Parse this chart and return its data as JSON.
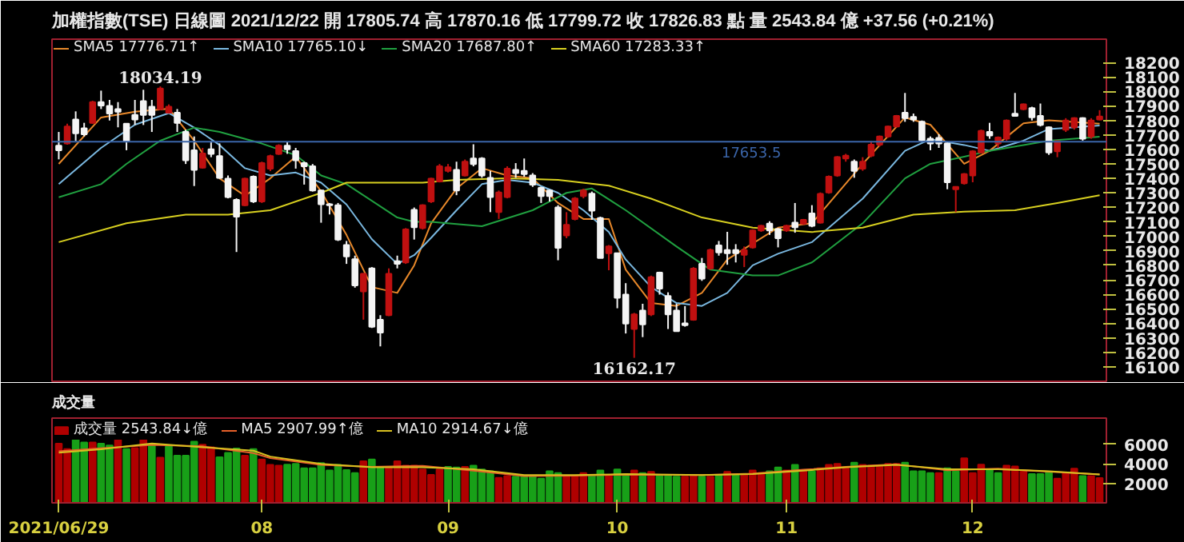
{
  "chart_data": [
    {
      "type": "candlestick",
      "title": "加權指數(TSE)  日線圖  2021/12/22  開 17805.74  高 17870.16  低 17799.72  收 17826.83  點  量 2543.84 億  +37.56 (+0.21%)",
      "categories": [
        "2021/06/29",
        null,
        null,
        null,
        null,
        null,
        null,
        null,
        null,
        null,
        null,
        null,
        null,
        null,
        null,
        null,
        null,
        null,
        null,
        null,
        null,
        null,
        null,
        null,
        "08",
        null,
        null,
        null,
        null,
        null,
        null,
        null,
        null,
        null,
        null,
        null,
        null,
        null,
        null,
        null,
        null,
        null,
        null,
        null,
        null,
        null,
        "09",
        null,
        null,
        null,
        null,
        null,
        null,
        null,
        null,
        null,
        null,
        null,
        null,
        null,
        null,
        null,
        null,
        null,
        null,
        null,
        "10",
        null,
        null,
        null,
        null,
        null,
        null,
        null,
        null,
        null,
        null,
        null,
        null,
        null,
        null,
        null,
        null,
        null,
        null,
        null,
        "11",
        null,
        null,
        null,
        null,
        null,
        null,
        null,
        null,
        null,
        null,
        null,
        null,
        null,
        null,
        null,
        null,
        null,
        null,
        null,
        null,
        null,
        "12",
        null,
        null,
        null,
        null,
        null,
        null,
        null,
        null,
        null,
        null,
        null,
        null,
        null,
        null,
        null
      ],
      "ohlc": [
        [
          17625,
          17720,
          17531,
          17594
        ],
        [
          17641,
          17777,
          17632,
          17758
        ],
        [
          17806,
          17862,
          17657,
          17711
        ],
        [
          17745,
          17783,
          17689,
          17704
        ],
        [
          17783,
          17935,
          17777,
          17926
        ],
        [
          17926,
          18005,
          17878,
          17903
        ],
        [
          17900,
          17941,
          17799,
          17847
        ],
        [
          17878,
          17926,
          17752,
          17859
        ],
        [
          17777,
          17777,
          17594,
          17657
        ],
        [
          17837,
          17941,
          17768,
          17806
        ],
        [
          17932,
          18011,
          17768,
          17837
        ],
        [
          17894,
          17941,
          17720,
          17837
        ],
        [
          17878,
          18034.19,
          17870,
          18020
        ],
        [
          17853,
          17910,
          17847,
          17894
        ],
        [
          17853,
          17878,
          17720,
          17783
        ],
        [
          17720,
          17736,
          17499,
          17524
        ],
        [
          17594,
          17689,
          17347,
          17458
        ],
        [
          17474,
          17610,
          17467,
          17572
        ],
        [
          17600,
          17657,
          17546,
          17569
        ],
        [
          17553,
          17641,
          17398,
          17404
        ],
        [
          17398,
          17420,
          17262,
          17271
        ],
        [
          17252,
          17262,
          16892,
          17136
        ],
        [
          17215,
          17404,
          17208,
          17398
        ],
        [
          17411,
          17420,
          17230,
          17240
        ],
        [
          17240,
          17515,
          17230,
          17505
        ],
        [
          17467,
          17563,
          17450,
          17553
        ],
        [
          17569,
          17635,
          17562,
          17625
        ],
        [
          17625,
          17651,
          17569,
          17600
        ],
        [
          17588,
          17610,
          17467,
          17524
        ],
        [
          17505,
          17515,
          17357,
          17483
        ],
        [
          17483,
          17499,
          17309,
          17316
        ],
        [
          17316,
          17322,
          17094,
          17221
        ],
        [
          17221,
          17230,
          17151,
          17215
        ],
        [
          17215,
          17230,
          16968,
          16978
        ],
        [
          16940,
          16968,
          16810,
          16861
        ],
        [
          16842,
          16867,
          16646,
          16662
        ],
        [
          16621,
          16747,
          16425,
          16741
        ],
        [
          16779,
          16788,
          16368,
          16377
        ],
        [
          16425,
          16456,
          16241,
          16336
        ],
        [
          16456,
          16779,
          16450,
          16741
        ],
        [
          16829,
          16867,
          16779,
          16810
        ],
        [
          16820,
          17057,
          16810,
          17047
        ],
        [
          17183,
          17199,
          16978,
          17063
        ],
        [
          17057,
          17221,
          17047,
          17215
        ],
        [
          17240,
          17404,
          17230,
          17398
        ],
        [
          17379,
          17499,
          17372,
          17483
        ],
        [
          17452,
          17499,
          17440,
          17477
        ],
        [
          17458,
          17515,
          17284,
          17316
        ],
        [
          17420,
          17530,
          17413,
          17515
        ],
        [
          17537,
          17635,
          17483,
          17499
        ],
        [
          17537,
          17546,
          17404,
          17420
        ],
        [
          17404,
          17452,
          17167,
          17271
        ],
        [
          17167,
          17316,
          17120,
          17303
        ],
        [
          17271,
          17483,
          17262,
          17467
        ],
        [
          17458,
          17505,
          17404,
          17436
        ],
        [
          17452,
          17537,
          17411,
          17430
        ],
        [
          17420,
          17436,
          17341,
          17357
        ],
        [
          17335,
          17341,
          17230,
          17278
        ],
        [
          17316,
          17322,
          17240,
          17278
        ],
        [
          17199,
          17215,
          16835,
          16921
        ],
        [
          17006,
          17167,
          16987,
          17079
        ],
        [
          17120,
          17271,
          17110,
          17262
        ],
        [
          17278,
          17328,
          17262,
          17316
        ],
        [
          17294,
          17309,
          17114,
          17177
        ],
        [
          17126,
          17136,
          16851,
          16851
        ],
        [
          16883,
          16940,
          16766,
          16930
        ],
        [
          16883,
          16883,
          16504,
          16576
        ],
        [
          16598,
          16677,
          16330,
          16399
        ],
        [
          16361,
          16472,
          16162.17,
          16462
        ],
        [
          16488,
          16535,
          16305,
          16393
        ],
        [
          16462,
          16729,
          16450,
          16718
        ],
        [
          16750,
          16756,
          16598,
          16639
        ],
        [
          16589,
          16614,
          16361,
          16462
        ],
        [
          16488,
          16535,
          16346,
          16346
        ],
        [
          16400,
          16519,
          16377,
          16387
        ],
        [
          16425,
          16788,
          16418,
          16778
        ],
        [
          16810,
          16851,
          16693,
          16709
        ],
        [
          16779,
          16915,
          16770,
          16905
        ],
        [
          16937,
          16968,
          16867,
          16889
        ],
        [
          16905,
          17031,
          16804,
          16883
        ],
        [
          16905,
          16946,
          16820,
          16883
        ],
        [
          16873,
          16930,
          16788,
          16905
        ],
        [
          16924,
          17047,
          16915,
          17041
        ],
        [
          17041,
          17079,
          17031,
          17072
        ],
        [
          17088,
          17104,
          17010,
          17041
        ],
        [
          17050,
          17057,
          16924,
          16987
        ],
        [
          17041,
          17079,
          17031,
          17072
        ],
        [
          17094,
          17230,
          17025,
          17063
        ],
        [
          17088,
          17120,
          17079,
          17114
        ],
        [
          17158,
          17215,
          17063,
          17072
        ],
        [
          17094,
          17303,
          17088,
          17293
        ],
        [
          17303,
          17420,
          17294,
          17411
        ],
        [
          17420,
          17553,
          17411,
          17546
        ],
        [
          17537,
          17569,
          17515,
          17556
        ],
        [
          17515,
          17530,
          17404,
          17452
        ],
        [
          17467,
          17546,
          17452,
          17515
        ],
        [
          17556,
          17657,
          17546,
          17632
        ],
        [
          17632,
          17695,
          17620,
          17689
        ],
        [
          17689,
          17764,
          17680,
          17758
        ],
        [
          17758,
          17837,
          17752,
          17831
        ],
        [
          17853,
          17989,
          17790,
          17815
        ],
        [
          17824,
          17847,
          17790,
          17806
        ],
        [
          17790,
          17799,
          17654,
          17663
        ],
        [
          17673,
          17689,
          17594,
          17641
        ],
        [
          17679,
          17704,
          17610,
          17641
        ],
        [
          17641,
          17651,
          17325,
          17373
        ],
        [
          17325,
          17341,
          17167,
          17341
        ],
        [
          17366,
          17436,
          17357,
          17429
        ],
        [
          17420,
          17594,
          17373,
          17587
        ],
        [
          17578,
          17736,
          17572,
          17727
        ],
        [
          17720,
          17783,
          17673,
          17695
        ],
        [
          17641,
          17689,
          17610,
          17682
        ],
        [
          17673,
          17806,
          17660,
          17799
        ],
        [
          17846,
          17989,
          17831,
          17831
        ],
        [
          17878,
          17916,
          17870,
          17910
        ],
        [
          17885,
          17894,
          17799,
          17821
        ],
        [
          17831,
          17916,
          17758,
          17768
        ],
        [
          17752,
          17758,
          17562,
          17578
        ],
        [
          17587,
          17657,
          17546,
          17657
        ],
        [
          17736,
          17815,
          17720,
          17799
        ],
        [
          17752,
          17821,
          17736,
          17815
        ],
        [
          17815,
          17821,
          17660,
          17673
        ],
        [
          17689,
          17815,
          17673,
          17799
        ],
        [
          17805.74,
          17870.16,
          17799.72,
          17826.83
        ]
      ],
      "series": [
        {
          "name": "SMA5 17776.71↑",
          "type": "line",
          "color": "#e8882a",
          "values": [
            17500,
            null,
            null,
            null,
            null,
            17820,
            null,
            null,
            null,
            17860,
            null,
            null,
            null,
            17880,
            null,
            null,
            17660,
            null,
            null,
            17400,
            null,
            null,
            17280,
            null,
            null,
            17400,
            null,
            null,
            17550,
            null,
            null,
            17310,
            null,
            null,
            17010,
            null,
            null,
            16650,
            null,
            null,
            16610,
            null,
            16800,
            null,
            17090,
            null,
            null,
            17330,
            null,
            null,
            17470,
            null,
            null,
            17420,
            null,
            null,
            17400,
            null,
            null,
            17230,
            null,
            null,
            17120,
            null,
            null,
            17120,
            null,
            16770,
            null,
            null,
            16540,
            null,
            null,
            16520,
            null,
            null,
            16610,
            null,
            null,
            16840,
            null,
            null,
            16950,
            null,
            null,
            17060,
            null,
            null,
            null,
            17090,
            null,
            null,
            null,
            null,
            null,
            17500,
            null,
            null,
            null,
            null,
            17820,
            null,
            null,
            17770,
            null,
            null,
            null,
            17500,
            null,
            null,
            17590,
            null,
            null,
            null,
            17780,
            null,
            null,
            17800,
            null,
            null,
            null,
            null,
            null,
            17776.71
          ]
        },
        {
          "name": "SMA10 17765.10↓",
          "type": "line",
          "color": "#7ab8e0",
          "values": [
            17360,
            null,
            null,
            null,
            null,
            17610,
            null,
            null,
            null,
            17770,
            null,
            null,
            null,
            17850,
            null,
            null,
            17750,
            null,
            null,
            17630,
            null,
            null,
            17470,
            null,
            null,
            17420,
            null,
            null,
            17440,
            null,
            null,
            17370,
            null,
            null,
            17220,
            null,
            null,
            16980,
            null,
            null,
            16810,
            null,
            16870,
            null,
            16990,
            null,
            null,
            17180,
            null,
            null,
            17360,
            null,
            null,
            17390,
            null,
            null,
            17370,
            null,
            null,
            17300,
            null,
            null,
            17180,
            null,
            null,
            17030,
            null,
            16840,
            null,
            null,
            16650,
            null,
            null,
            16540,
            null,
            null,
            16520,
            null,
            null,
            16610,
            null,
            null,
            16800,
            null,
            null,
            16880,
            null,
            null,
            null,
            16960,
            null,
            null,
            null,
            null,
            null,
            17260,
            null,
            null,
            null,
            null,
            17590,
            null,
            null,
            17670,
            null,
            null,
            null,
            17630,
            null,
            null,
            17590,
            null,
            null,
            null,
            17660,
            null,
            null,
            17740,
            null,
            null,
            null,
            null,
            null,
            17765.1
          ]
        },
        {
          "name": "SMA20 17687.80↑",
          "type": "line",
          "color": "#20a040",
          "values": [
            17270,
            null,
            null,
            null,
            null,
            17360,
            null,
            null,
            17500,
            null,
            null,
            null,
            17660,
            null,
            null,
            null,
            17750,
            null,
            null,
            17720,
            null,
            null,
            null,
            null,
            17640,
            null,
            null,
            null,
            17560,
            null,
            null,
            17420,
            null,
            null,
            17360,
            null,
            null,
            null,
            null,
            null,
            17130,
            null,
            17100,
            null,
            17100,
            null,
            null,
            null,
            null,
            null,
            17070,
            null,
            null,
            null,
            null,
            null,
            17180,
            null,
            null,
            null,
            17300,
            null,
            null,
            17330,
            null,
            null,
            null,
            17180,
            null,
            null,
            null,
            null,
            null,
            16930,
            null,
            null,
            null,
            16770,
            null,
            null,
            null,
            null,
            16730,
            null,
            null,
            16730,
            null,
            null,
            null,
            16820,
            null,
            null,
            null,
            null,
            null,
            17090,
            null,
            null,
            null,
            null,
            17400,
            null,
            null,
            17500,
            null,
            null,
            null,
            17550,
            null,
            null,
            17590,
            null,
            null,
            null,
            17630,
            null,
            null,
            17660,
            null,
            null,
            null,
            null,
            null,
            17687.8
          ]
        },
        {
          "name": "SMA60 17283.33↑",
          "type": "line",
          "color": "#d8d020",
          "values": [
            16960,
            null,
            null,
            null,
            null,
            null,
            null,
            null,
            17090,
            null,
            null,
            null,
            null,
            null,
            null,
            17150,
            null,
            null,
            null,
            null,
            17150,
            null,
            null,
            null,
            null,
            17180,
            null,
            null,
            null,
            null,
            null,
            17300,
            null,
            null,
            17370,
            null,
            null,
            null,
            null,
            null,
            null,
            null,
            null,
            17370,
            null,
            null,
            null,
            17390,
            null,
            null,
            null,
            null,
            null,
            17400,
            null,
            null,
            null,
            null,
            null,
            17390,
            null,
            null,
            null,
            null,
            null,
            17350,
            null,
            null,
            null,
            null,
            17260,
            null,
            null,
            null,
            null,
            null,
            17130,
            null,
            null,
            null,
            null,
            null,
            17060,
            null,
            null,
            null,
            null,
            null,
            null,
            17030,
            null,
            null,
            null,
            null,
            null,
            17060,
            null,
            null,
            null,
            null,
            null,
            17150,
            null,
            null,
            null,
            null,
            null,
            17170,
            null,
            null,
            null,
            null,
            null,
            17180,
            null,
            null,
            null,
            null,
            17230,
            null,
            null,
            null,
            null,
            17283.33
          ]
        }
      ],
      "ylim": [
        16000,
        18360
      ],
      "yticks": [
        16100,
        16200,
        16300,
        16400,
        16500,
        16600,
        16700,
        16800,
        16900,
        17000,
        17100,
        17200,
        17300,
        17400,
        17500,
        17600,
        17700,
        17800,
        17900,
        18000,
        18100,
        18200
      ],
      "ref_lines": [
        {
          "axis": "y",
          "value": 17653.5,
          "label": "17653.5",
          "color": "#3a64a8"
        }
      ],
      "annotations": [
        {
          "text": "18034.19",
          "y": 18034.19
        },
        {
          "text": "16162.17",
          "y": 16162.17
        }
      ],
      "tick_labels": "y",
      "legend": "top left"
    },
    {
      "type": "bar",
      "title": "成交量",
      "categories": [
        "2021/06/29",
        null,
        null,
        null,
        null,
        null,
        null,
        null,
        null,
        null,
        null,
        null,
        null,
        null,
        null,
        null,
        null,
        null,
        null,
        null,
        null,
        null,
        null,
        null,
        "08",
        null,
        null,
        null,
        null,
        null,
        null,
        null,
        null,
        null,
        null,
        null,
        null,
        null,
        null,
        null,
        null,
        null,
        null,
        null,
        null,
        null,
        "09",
        null,
        null,
        null,
        null,
        null,
        null,
        null,
        null,
        null,
        null,
        null,
        null,
        null,
        null,
        null,
        null,
        null,
        null,
        null,
        "10",
        null,
        null,
        null,
        null,
        null,
        null,
        null,
        null,
        null,
        null,
        null,
        null,
        null,
        null,
        null,
        null,
        null,
        null,
        null,
        "11",
        null,
        null,
        null,
        null,
        null,
        null,
        null,
        null,
        null,
        null,
        null,
        null,
        null,
        null,
        null,
        null,
        null,
        null,
        null,
        null,
        null,
        "12",
        null,
        null,
        null,
        null,
        null,
        null,
        null,
        null,
        null,
        null,
        null,
        null,
        null,
        null,
        null
      ],
      "series": [
        {
          "name": "成交量 2543.84↓億",
          "type": "bar",
          "values": [
            6082,
            5515,
            6535,
            6195,
            6195,
            6082,
            5893,
            6460,
            5515,
            5628,
            6724,
            5893,
            4646,
            5817,
            4835,
            4835,
            6271,
            5969,
            5704,
            4684,
            5137,
            5590,
            4835,
            5515,
            4457,
            3890,
            3814,
            3927,
            4003,
            3549,
            3549,
            4079,
            3323,
            3890,
            3360,
            3058,
            4268,
            4457,
            3701,
            3701,
            4268,
            3814,
            3814,
            3436,
            2869,
            3436,
            3701,
            3625,
            3701,
            3814,
            3436,
            3247,
            2567,
            2756,
            2680,
            2680,
            2756,
            2491,
            3247,
            3058,
            2680,
            2756,
            3058,
            2793,
            3323,
            2869,
            3436,
            2945,
            3323,
            3058,
            3172,
            2793,
            2869,
            2680,
            2680,
            2869,
            2680,
            2680,
            2793,
            3172,
            2869,
            2869,
            3323,
            3058,
            3247,
            3625,
            3323,
            3890,
            3247,
            3247,
            3549,
            3890,
            4003,
            3549,
            4116,
            3890,
            3814,
            3814,
            4003,
            4003,
            4116,
            3247,
            3247,
            3058,
            3058,
            3549,
            3247,
            4570,
            3058,
            3927,
            3360,
            3058,
            3814,
            3739,
            3247,
            2945,
            2945,
            3172,
            2491,
            3058,
            3511,
            2756,
            2756,
            2543.84
          ],
          "colors": [
            "#b00000",
            "#b00000",
            "#18a018",
            "#18a018",
            "#b00000",
            "#18a018",
            "#18a018",
            "#b00000",
            "#18a018",
            "#b00000",
            "#b00000",
            "#18a018",
            "#b00000",
            "#18a018",
            "#18a018",
            "#18a018",
            "#18a018",
            "#b00000",
            "#b00000",
            "#18a018",
            "#18a018",
            "#18a018",
            "#b00000",
            "#18a018",
            "#b00000",
            "#b00000",
            "#b00000",
            "#18a018",
            "#18a018",
            "#18a018",
            "#18a018",
            "#18a018",
            "#18a018",
            "#18a018",
            "#18a018",
            "#18a018",
            "#b00000",
            "#18a018",
            "#18a018",
            "#b00000",
            "#b00000",
            "#b00000",
            "#b00000",
            "#b00000",
            "#b00000",
            "#b00000",
            "#18a018",
            "#18a018",
            "#b00000",
            "#18a018",
            "#18a018",
            "#18a018",
            "#b00000",
            "#b00000",
            "#18a018",
            "#18a018",
            "#18a018",
            "#18a018",
            "#18a018",
            "#18a018",
            "#b00000",
            "#b00000",
            "#b00000",
            "#18a018",
            "#18a018",
            "#b00000",
            "#18a018",
            "#18a018",
            "#b00000",
            "#18a018",
            "#b00000",
            "#18a018",
            "#18a018",
            "#18a018",
            "#b00000",
            "#b00000",
            "#18a018",
            "#b00000",
            "#18a018",
            "#b00000",
            "#18a018",
            "#b00000",
            "#b00000",
            "#b00000",
            "#18a018",
            "#18a018",
            "#b00000",
            "#18a018",
            "#b00000",
            "#18a018",
            "#b00000",
            "#b00000",
            "#b00000",
            "#b00000",
            "#18a018",
            "#b00000",
            "#b00000",
            "#b00000",
            "#b00000",
            "#b00000",
            "#18a018",
            "#18a018",
            "#18a018",
            "#18a018",
            "#b00000",
            "#18a018",
            "#18a018",
            "#b00000",
            "#b00000",
            "#b00000",
            "#18a018",
            "#18a018",
            "#b00000",
            "#b00000",
            "#b00000",
            "#18a018",
            "#18a018",
            "#18a018",
            "#b00000",
            "#b00000",
            "#b00000",
            "#18a018",
            "#b00000",
            "#b00000"
          ]
        },
        {
          "name": "MA5 2907.99↑億",
          "type": "line",
          "color": "#e8602a",
          "values": [
            5300,
            null,
            null,
            null,
            null,
            5600,
            null,
            null,
            null,
            null,
            null,
            5950,
            null,
            null,
            null,
            null,
            null,
            5800,
            null,
            null,
            null,
            null,
            null,
            5100,
            null,
            4600,
            null,
            null,
            null,
            null,
            null,
            3900,
            null,
            null,
            null,
            null,
            null,
            3700,
            null,
            null,
            null,
            null,
            null,
            3800,
            null,
            null,
            null,
            null,
            null,
            3300,
            null,
            null,
            null,
            null,
            null,
            2750,
            null,
            null,
            null,
            null,
            null,
            2800,
            null,
            null,
            null,
            null,
            null,
            2900,
            null,
            null,
            null,
            null,
            null,
            null,
            null,
            null,
            2850,
            null,
            null,
            null,
            null,
            null,
            3000,
            null,
            null,
            null,
            null,
            null,
            3400,
            null,
            null,
            null,
            null,
            3700,
            null,
            null,
            null,
            null,
            null,
            3950,
            null,
            null,
            null,
            null,
            null,
            3350,
            null,
            null,
            null,
            null,
            null,
            3500,
            null,
            null,
            null,
            null,
            null,
            3200,
            null,
            null,
            null,
            null,
            null,
            2907.99
          ]
        },
        {
          "name": "MA10 2914.67↓億",
          "type": "line",
          "color": "#d8c020",
          "values": [
            5150,
            null,
            null,
            null,
            null,
            5500,
            null,
            null,
            null,
            null,
            null,
            6100,
            null,
            null,
            null,
            null,
            null,
            5700,
            null,
            null,
            null,
            null,
            null,
            5350,
            null,
            4750,
            null,
            null,
            null,
            null,
            null,
            4000,
            null,
            null,
            null,
            null,
            null,
            3650,
            null,
            null,
            null,
            null,
            null,
            3650,
            null,
            null,
            null,
            null,
            null,
            3450,
            null,
            null,
            null,
            null,
            null,
            2850,
            null,
            null,
            null,
            null,
            null,
            2850,
            null,
            null,
            null,
            null,
            null,
            2950,
            null,
            null,
            null,
            null,
            null,
            null,
            null,
            null,
            2850,
            null,
            null,
            null,
            null,
            null,
            2950,
            null,
            null,
            null,
            null,
            null,
            3300,
            null,
            null,
            null,
            null,
            3650,
            null,
            null,
            null,
            null,
            null,
            3900,
            null,
            null,
            null,
            null,
            null,
            3450,
            null,
            null,
            null,
            null,
            null,
            3450,
            null,
            null,
            null,
            null,
            null,
            3250,
            null,
            null,
            null,
            null,
            null,
            2914.67
          ]
        }
      ],
      "ylim": [
        0,
        8700
      ],
      "yticks": [
        2000,
        4000,
        6000
      ],
      "legend": "top left"
    }
  ]
}
